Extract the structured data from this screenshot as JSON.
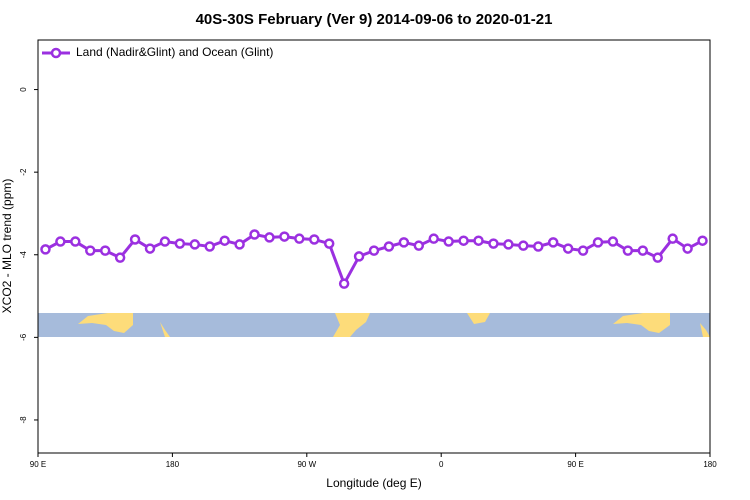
{
  "chart_data": {
    "type": "line",
    "title": "40S-30S February (Ver 9)   2014-09-06 to 2020-01-21",
    "x_label": "Longitude (deg E)",
    "y_label": "XCO2 - MLO trend (ppm)",
    "x": [
      95,
      105,
      115,
      125,
      135,
      145,
      155,
      165,
      175,
      185,
      195,
      205,
      215,
      225,
      235,
      245,
      255,
      265,
      275,
      285,
      295,
      305,
      315,
      325,
      335,
      345,
      355,
      365,
      375,
      385,
      395,
      405,
      415,
      425,
      435,
      445,
      455,
      465,
      475,
      485,
      495,
      505,
      515,
      525,
      535
    ],
    "series": [
      {
        "name": "Land (Nadir&Glint) and Ocean (Glint)",
        "color": "#9b30e0",
        "values": [
          -3.87,
          -3.68,
          -3.68,
          -3.9,
          -3.9,
          -4.07,
          -3.63,
          -3.85,
          -3.68,
          -3.73,
          -3.75,
          -3.8,
          -3.66,
          -3.75,
          -3.51,
          -3.58,
          -3.56,
          -3.61,
          -3.63,
          -3.73,
          -4.7,
          -4.04,
          -3.9,
          -3.8,
          -3.7,
          -3.78,
          -3.61,
          -3.68,
          -3.66,
          -3.66,
          -3.73,
          -3.75,
          -3.78,
          -3.8,
          -3.7,
          -3.85,
          -3.9,
          -3.7,
          -3.68,
          -3.9,
          -3.9,
          -4.07,
          -3.61,
          -3.85,
          -3.66
        ]
      }
    ],
    "xlim": [
      90,
      540
    ],
    "xticks": [
      {
        "value": 90,
        "label": "90 E"
      },
      180,
      {
        "value": 270,
        "label": "90 W"
      },
      {
        "value": 360,
        "label": "0"
      },
      {
        "value": 450,
        "label": "90 E"
      },
      {
        "value": 540,
        "label": "180"
      }
    ],
    "ylim": [
      -8.8,
      1.2
    ],
    "yticks": [
      0,
      -2,
      -4,
      -6,
      -8
    ],
    "legend": "top-left"
  }
}
